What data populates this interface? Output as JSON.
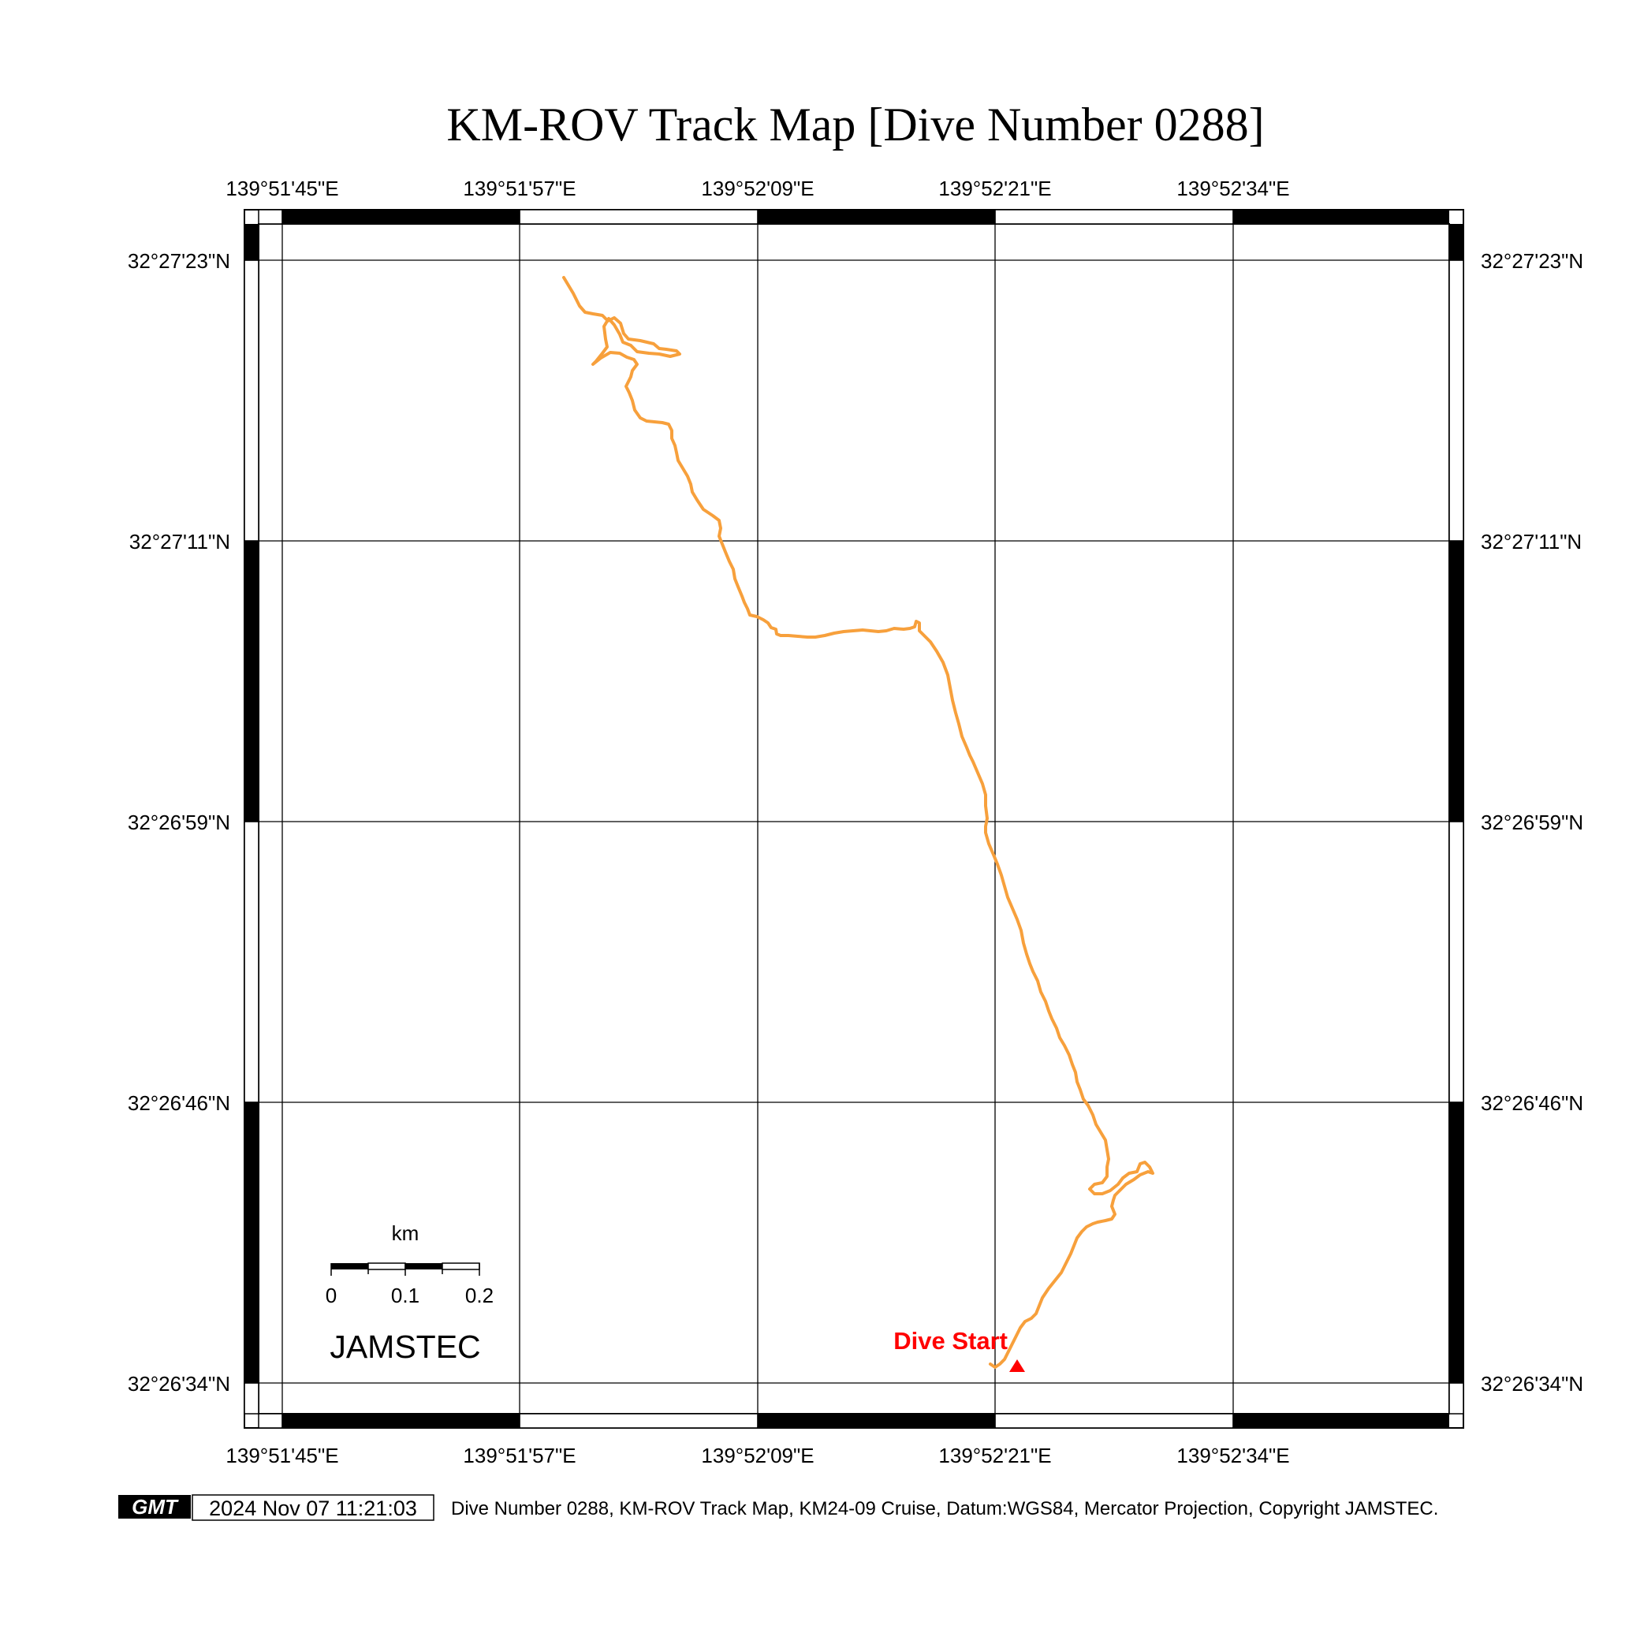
{
  "title": "KM-ROV Track Map [Dive Number 0288]",
  "axes": {
    "lon_labels": [
      "139°51'45\"E",
      "139°51'57\"E",
      "139°52'09\"E",
      "139°52'21\"E",
      "139°52'34\"E"
    ],
    "lat_labels": [
      "32°27'23\"N",
      "32°27'11\"N",
      "32°26'59\"N",
      "32°26'46\"N",
      "32°26'34\"N"
    ]
  },
  "track": {
    "color": "#f7a03c",
    "start_label": "Dive Start",
    "start_color": "#ff0000",
    "start_marker": "triangle-up"
  },
  "scale_bar": {
    "unit": "km",
    "ticks": [
      "0",
      "0.1",
      "0.2"
    ]
  },
  "org": "JAMSTEC",
  "footer": {
    "logo": "GMT",
    "timestamp": "2024 Nov 07 11:21:03",
    "caption": "Dive Number 0288, KM-ROV Track Map, KM24-09 Cruise, Datum:WGS84, Mercator Projection, Copyright JAMSTEC."
  }
}
